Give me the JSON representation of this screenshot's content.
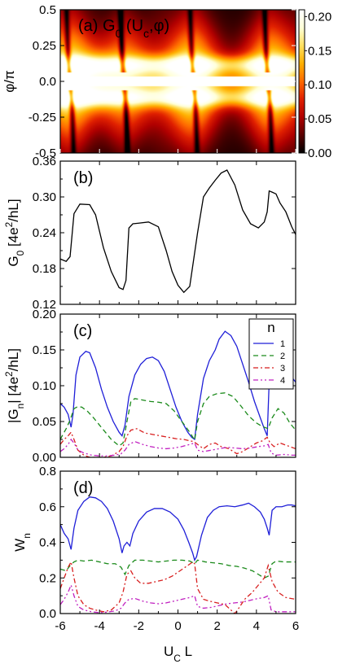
{
  "chart_data": [
    {
      "type": "heatmap",
      "panel": "(a)",
      "title": "G₀(Uᶜ,φ)",
      "title_main": "G",
      "title_sub": "0",
      "title_rest": "(U",
      "title_sub2": "c",
      "title_end": ",φ)",
      "xlim": [
        -6,
        6
      ],
      "ylim": [
        -0.5,
        0.5
      ],
      "ylabel": "φ/π",
      "yticks": [
        "0.5",
        "0.25",
        "0.0",
        "-0.25",
        "-0.5"
      ],
      "ytick_values": [
        0.5,
        0.25,
        0.0,
        -0.25,
        -0.5
      ],
      "colorbar_ticks": [
        "0.20",
        "0.15",
        "0.10",
        "0.05",
        "0.00"
      ],
      "colorbar_values": [
        0.2,
        0.15,
        0.1,
        0.05,
        0.0
      ],
      "colorbar_range": [
        0,
        0.21
      ],
      "colormap": [
        "#000000",
        "#5a0000",
        "#b00000",
        "#e02000",
        "#ff6a00",
        "#ffb000",
        "#ffe060",
        "#ffffd8",
        "#ffffff"
      ],
      "bright_centers_x": [
        -5.5,
        -2.75,
        0.8,
        4.6
      ]
    },
    {
      "type": "line",
      "panel": "(b)",
      "ylabel": "G₀ [4e²/hL]",
      "ylabel_parts": [
        "G",
        "0",
        " [4e",
        "2",
        "/hL]"
      ],
      "xlim": [
        -6,
        6
      ],
      "ylim": [
        0.12,
        0.36
      ],
      "yticks": [
        "0.36",
        "0.30",
        "0.24",
        "0.18",
        "0.12"
      ],
      "ytick_values": [
        0.36,
        0.3,
        0.24,
        0.18,
        0.12
      ],
      "series": [
        {
          "color": "#000000",
          "style": "solid",
          "x": [
            -6,
            -5.7,
            -5.5,
            -5.3,
            -5.0,
            -4.5,
            -4.2,
            -3.8,
            -3.4,
            -3.0,
            -2.8,
            -2.65,
            -2.5,
            -2.3,
            -2.0,
            -1.5,
            -1.0,
            -0.6,
            -0.3,
            0.0,
            0.3,
            0.6,
            0.8,
            1.0,
            1.3,
            1.6,
            1.9,
            2.2,
            2.5,
            2.9,
            3.3,
            3.7,
            4.1,
            4.4,
            4.55,
            4.65,
            4.8,
            5.0,
            5.2,
            5.5,
            5.8,
            6.0
          ],
          "y": [
            0.196,
            0.192,
            0.2,
            0.272,
            0.288,
            0.287,
            0.27,
            0.215,
            0.175,
            0.148,
            0.145,
            0.16,
            0.248,
            0.255,
            0.256,
            0.258,
            0.25,
            0.21,
            0.175,
            0.152,
            0.14,
            0.15,
            0.195,
            0.24,
            0.3,
            0.315,
            0.328,
            0.34,
            0.345,
            0.32,
            0.278,
            0.255,
            0.248,
            0.258,
            0.275,
            0.31,
            0.308,
            0.305,
            0.29,
            0.275,
            0.25,
            0.237
          ]
        }
      ]
    },
    {
      "type": "line",
      "panel": "(c)",
      "ylabel": "|Gₙ| [4e²/hL]",
      "ylabel_parts": [
        "|G",
        "n",
        "| [4e",
        "2",
        "/hL]"
      ],
      "xlim": [
        -6,
        6
      ],
      "ylim": [
        0,
        0.2
      ],
      "yticks": [
        "0.20",
        "0.15",
        "0.10",
        "0.05",
        "0.00"
      ],
      "ytick_values": [
        0.2,
        0.15,
        0.1,
        0.05,
        0.0
      ],
      "legend_title": "n",
      "legend_position": "top-right",
      "series": [
        {
          "name": "1",
          "color": "#1f1fd8",
          "dash": "",
          "x": [
            -6,
            -5.8,
            -5.6,
            -5.45,
            -5.35,
            -5.2,
            -5.0,
            -4.7,
            -4.5,
            -4.2,
            -3.9,
            -3.6,
            -3.3,
            -3.0,
            -2.85,
            -2.7,
            -2.5,
            -2.2,
            -1.9,
            -1.6,
            -1.3,
            -1.0,
            -0.7,
            -0.4,
            -0.1,
            0.2,
            0.5,
            0.7,
            0.85,
            1.0,
            1.3,
            1.6,
            1.9,
            2.1,
            2.4,
            2.7,
            3.0,
            3.3,
            3.6,
            3.9,
            4.2,
            4.4,
            4.55,
            4.65,
            4.8,
            5.0,
            5.2,
            5.5,
            5.8,
            6.0
          ],
          "y": [
            0.075,
            0.07,
            0.06,
            0.042,
            0.06,
            0.115,
            0.14,
            0.148,
            0.146,
            0.125,
            0.095,
            0.07,
            0.05,
            0.035,
            0.03,
            0.045,
            0.085,
            0.115,
            0.13,
            0.138,
            0.14,
            0.135,
            0.12,
            0.095,
            0.07,
            0.05,
            0.035,
            0.028,
            0.025,
            0.06,
            0.11,
            0.135,
            0.15,
            0.165,
            0.176,
            0.17,
            0.155,
            0.13,
            0.105,
            0.078,
            0.055,
            0.04,
            0.03,
            0.105,
            0.135,
            0.14,
            0.132,
            0.12,
            0.112,
            0.105
          ]
        },
        {
          "name": "2",
          "color": "#1a8a1a",
          "dash": "6,4",
          "x": [
            -6,
            -5.7,
            -5.5,
            -5.3,
            -5.1,
            -4.9,
            -4.6,
            -4.3,
            -4.0,
            -3.7,
            -3.4,
            -3.0,
            -2.8,
            -2.6,
            -2.4,
            -2.2,
            -1.8,
            -1.4,
            -1.0,
            -0.6,
            -0.2,
            0.2,
            0.6,
            0.85,
            1.0,
            1.3,
            1.6,
            2.0,
            2.4,
            2.8,
            3.2,
            3.6,
            4.0,
            4.3,
            4.6,
            4.8,
            5.1,
            5.4,
            5.7,
            6.0
          ],
          "y": [
            0.025,
            0.04,
            0.052,
            0.068,
            0.071,
            0.07,
            0.064,
            0.055,
            0.045,
            0.035,
            0.025,
            0.016,
            0.02,
            0.05,
            0.078,
            0.082,
            0.08,
            0.078,
            0.077,
            0.075,
            0.065,
            0.05,
            0.035,
            0.024,
            0.05,
            0.075,
            0.085,
            0.089,
            0.09,
            0.085,
            0.072,
            0.058,
            0.048,
            0.043,
            0.04,
            0.055,
            0.068,
            0.062,
            0.048,
            0.038
          ]
        },
        {
          "name": "3",
          "color": "#d81f1f",
          "dash": "6,3,2,3",
          "x": [
            -6,
            -5.8,
            -5.6,
            -5.45,
            -5.3,
            -5.1,
            -4.8,
            -4.5,
            -4.2,
            -3.8,
            -3.4,
            -3.0,
            -2.8,
            -2.6,
            -2.4,
            -2.1,
            -1.7,
            -1.3,
            -0.9,
            -0.5,
            -0.1,
            0.3,
            0.6,
            0.8,
            1.0,
            1.3,
            1.6,
            1.9,
            2.2,
            2.6,
            3.0,
            3.3,
            3.7,
            4.0,
            4.3,
            4.55,
            4.7,
            4.9,
            5.2,
            5.6,
            6.0
          ],
          "y": [
            0.018,
            0.025,
            0.03,
            0.035,
            0.025,
            0.01,
            0.003,
            0.0,
            0.0,
            0.0,
            0.002,
            0.008,
            0.015,
            0.03,
            0.038,
            0.04,
            0.034,
            0.032,
            0.03,
            0.028,
            0.026,
            0.025,
            0.023,
            0.022,
            0.018,
            0.012,
            0.018,
            0.02,
            0.015,
            0.012,
            0.005,
            0.008,
            0.015,
            0.02,
            0.023,
            0.028,
            0.02,
            0.015,
            0.02,
            0.016,
            0.012
          ]
        },
        {
          "name": "4",
          "color": "#c020c0",
          "dash": "6,3,2,3,2,3",
          "x": [
            -6,
            -5.8,
            -5.6,
            -5.45,
            -5.3,
            -5.1,
            -4.8,
            -4.4,
            -4.0,
            -3.6,
            -3.2,
            -2.9,
            -2.7,
            -2.5,
            -2.2,
            -1.8,
            -1.4,
            -1.0,
            -0.6,
            -0.2,
            0.2,
            0.6,
            0.85,
            1.0,
            1.3,
            1.7,
            2.1,
            2.5,
            2.9,
            3.3,
            3.7,
            4.1,
            4.4,
            4.6,
            4.75,
            5.0,
            5.4,
            5.8,
            6.0
          ],
          "y": [
            0.008,
            0.012,
            0.018,
            0.025,
            0.02,
            0.01,
            0.006,
            0.003,
            0.002,
            0.002,
            0.003,
            0.005,
            0.01,
            0.018,
            0.022,
            0.018,
            0.015,
            0.013,
            0.012,
            0.013,
            0.015,
            0.018,
            0.02,
            0.01,
            0.008,
            0.01,
            0.012,
            0.014,
            0.013,
            0.012,
            0.013,
            0.015,
            0.016,
            0.018,
            0.006,
            0.003,
            0.004,
            0.003,
            0.003
          ]
        }
      ]
    },
    {
      "type": "line",
      "panel": "(d)",
      "ylabel": "Wₙ",
      "ylabel_parts": [
        "W",
        "n"
      ],
      "xlabel": "Uᶜ L",
      "xlabel_parts": [
        "U",
        "C",
        " L"
      ],
      "xlim": [
        -6,
        6
      ],
      "ylim": [
        0,
        0.8
      ],
      "xticks": [
        "-6",
        "-4",
        "-2",
        "0",
        "2",
        "4",
        "6"
      ],
      "xtick_values": [
        -6,
        -4,
        -2,
        0,
        2,
        4,
        6
      ],
      "yticks": [
        "0.8",
        "0.6",
        "0.4",
        "0.2",
        "0.0"
      ],
      "ytick_values": [
        0.8,
        0.6,
        0.4,
        0.2,
        0.0
      ],
      "series": [
        {
          "name": "1",
          "color": "#1f1fd8",
          "dash": "",
          "x": [
            -6,
            -5.8,
            -5.6,
            -5.45,
            -5.3,
            -5.1,
            -4.8,
            -4.5,
            -4.2,
            -3.9,
            -3.6,
            -3.3,
            -3.0,
            -2.85,
            -2.75,
            -2.6,
            -2.45,
            -2.3,
            -2.0,
            -1.6,
            -1.2,
            -0.8,
            -0.4,
            0.0,
            0.3,
            0.55,
            0.75,
            0.85,
            0.95,
            1.2,
            1.5,
            1.8,
            2.1,
            2.5,
            2.9,
            3.3,
            3.6,
            3.9,
            4.2,
            4.4,
            4.55,
            4.65,
            4.8,
            5.0,
            5.3,
            5.6,
            5.8,
            6.0
          ],
          "y": [
            0.5,
            0.45,
            0.42,
            0.36,
            0.48,
            0.58,
            0.63,
            0.655,
            0.65,
            0.63,
            0.59,
            0.52,
            0.42,
            0.34,
            0.38,
            0.4,
            0.38,
            0.45,
            0.52,
            0.57,
            0.59,
            0.59,
            0.57,
            0.53,
            0.47,
            0.4,
            0.34,
            0.3,
            0.32,
            0.44,
            0.54,
            0.58,
            0.6,
            0.605,
            0.6,
            0.61,
            0.62,
            0.6,
            0.57,
            0.53,
            0.48,
            0.44,
            0.58,
            0.6,
            0.6,
            0.61,
            0.61,
            0.605
          ]
        },
        {
          "name": "2",
          "color": "#1a8a1a",
          "dash": "6,4",
          "x": [
            -6,
            -5.7,
            -5.5,
            -5.3,
            -5.1,
            -4.8,
            -4.4,
            -4.0,
            -3.6,
            -3.2,
            -2.9,
            -2.7,
            -2.5,
            -2.2,
            -1.8,
            -1.4,
            -1.0,
            -0.6,
            -0.2,
            0.2,
            0.6,
            0.85,
            1.0,
            1.4,
            1.8,
            2.2,
            2.6,
            3.0,
            3.4,
            3.8,
            4.1,
            4.4,
            4.6,
            4.8,
            5.0,
            5.4,
            5.8,
            6.0
          ],
          "y": [
            0.25,
            0.24,
            0.27,
            0.29,
            0.3,
            0.295,
            0.3,
            0.29,
            0.28,
            0.28,
            0.26,
            0.22,
            0.27,
            0.3,
            0.3,
            0.295,
            0.29,
            0.295,
            0.3,
            0.3,
            0.295,
            0.28,
            0.3,
            0.29,
            0.285,
            0.28,
            0.27,
            0.265,
            0.255,
            0.24,
            0.22,
            0.2,
            0.21,
            0.28,
            0.295,
            0.29,
            0.29,
            0.29
          ]
        },
        {
          "name": "3",
          "color": "#d81f1f",
          "dash": "6,3,2,3",
          "x": [
            -6,
            -5.8,
            -5.6,
            -5.45,
            -5.3,
            -5.1,
            -4.8,
            -4.5,
            -4.2,
            -3.8,
            -3.4,
            -3.0,
            -2.8,
            -2.6,
            -2.4,
            -2.2,
            -1.9,
            -1.5,
            -1.1,
            -0.7,
            -0.3,
            0.1,
            0.5,
            0.75,
            0.85,
            1.0,
            1.3,
            1.6,
            2.0,
            2.4,
            2.7,
            2.9,
            3.1,
            3.4,
            3.8,
            4.1,
            4.4,
            4.6,
            4.8,
            5.1,
            5.5,
            6.0
          ],
          "y": [
            0.14,
            0.2,
            0.26,
            0.29,
            0.2,
            0.1,
            0.05,
            0.03,
            0.02,
            0.01,
            0.02,
            0.06,
            0.12,
            0.22,
            0.24,
            0.2,
            0.17,
            0.17,
            0.18,
            0.19,
            0.21,
            0.24,
            0.27,
            0.29,
            0.28,
            0.14,
            0.08,
            0.07,
            0.06,
            0.05,
            0.02,
            0.0,
            0.03,
            0.08,
            0.12,
            0.16,
            0.2,
            0.27,
            0.18,
            0.12,
            0.09,
            0.08
          ]
        },
        {
          "name": "4",
          "color": "#c020c0",
          "dash": "6,3,2,3,2,3",
          "x": [
            -6,
            -5.8,
            -5.6,
            -5.45,
            -5.3,
            -5.1,
            -4.8,
            -4.4,
            -4.0,
            -3.6,
            -3.2,
            -2.9,
            -2.7,
            -2.5,
            -2.2,
            -1.8,
            -1.4,
            -1.0,
            -0.6,
            -0.2,
            0.2,
            0.6,
            0.85,
            1.0,
            1.3,
            1.7,
            2.1,
            2.5,
            2.9,
            3.3,
            3.7,
            4.1,
            4.4,
            4.6,
            4.75,
            5.0,
            5.4,
            5.8,
            6.0
          ],
          "y": [
            0.05,
            0.08,
            0.12,
            0.16,
            0.1,
            0.04,
            0.02,
            0.01,
            0.005,
            0.008,
            0.015,
            0.03,
            0.06,
            0.08,
            0.085,
            0.07,
            0.06,
            0.055,
            0.06,
            0.07,
            0.08,
            0.09,
            0.1,
            0.04,
            0.03,
            0.035,
            0.045,
            0.055,
            0.06,
            0.065,
            0.075,
            0.085,
            0.09,
            0.1,
            0.02,
            0.01,
            0.01,
            0.01,
            0.01
          ]
        }
      ]
    }
  ]
}
